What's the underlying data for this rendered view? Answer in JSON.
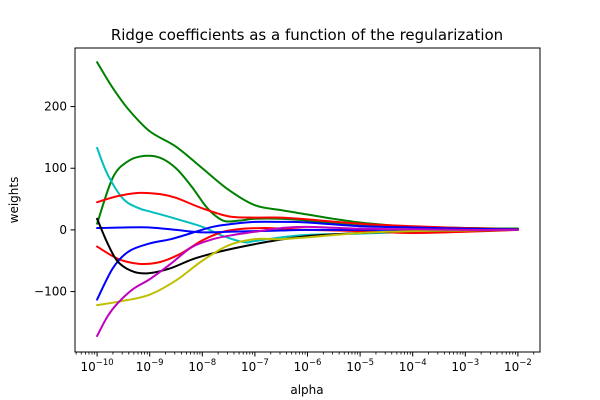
{
  "chart_data": {
    "type": "line",
    "title": "Ridge coefficients as a function of the regularization",
    "xlabel": "alpha",
    "ylabel": "weights",
    "xscale": "log",
    "x_exponent_range": [
      -10,
      -2
    ],
    "xlim_exponent": [
      -10.42,
      -1.58
    ],
    "ylim": [
      -198,
      295
    ],
    "x_ticks": [
      {
        "base": "10",
        "exp": "−10",
        "log10": -10
      },
      {
        "base": "10",
        "exp": "−9",
        "log10": -9
      },
      {
        "base": "10",
        "exp": "−8",
        "log10": -8
      },
      {
        "base": "10",
        "exp": "−7",
        "log10": -7
      },
      {
        "base": "10",
        "exp": "−6",
        "log10": -6
      },
      {
        "base": "10",
        "exp": "−5",
        "log10": -5
      },
      {
        "base": "10",
        "exp": "−4",
        "log10": -4
      },
      {
        "base": "10",
        "exp": "−3",
        "log10": -3
      },
      {
        "base": "10",
        "exp": "−2",
        "log10": -2
      }
    ],
    "y_ticks": [
      {
        "label": "−100",
        "value": -100
      },
      {
        "label": "0",
        "value": 0
      },
      {
        "label": "100",
        "value": 100
      },
      {
        "label": "200",
        "value": 200
      }
    ],
    "series": [
      {
        "name": "green-1",
        "color": "#008000",
        "points": [
          [
            -10,
            272
          ],
          [
            -9.7,
            230
          ],
          [
            -9.4,
            195
          ],
          [
            -9,
            160
          ],
          [
            -8.5,
            135
          ],
          [
            -8,
            100
          ],
          [
            -7.5,
            65
          ],
          [
            -7,
            40
          ],
          [
            -6.5,
            32
          ],
          [
            -6,
            25
          ],
          [
            -5.5,
            18
          ],
          [
            -5,
            12
          ],
          [
            -4.5,
            8
          ],
          [
            -4,
            5
          ],
          [
            -3,
            3
          ],
          [
            -2,
            2
          ]
        ]
      },
      {
        "name": "green-2",
        "color": "#008000",
        "points": [
          [
            -10,
            10
          ],
          [
            -9.7,
            85
          ],
          [
            -9.4,
            112
          ],
          [
            -9.1,
            120
          ],
          [
            -8.8,
            117
          ],
          [
            -8.5,
            100
          ],
          [
            -8.2,
            70
          ],
          [
            -7.9,
            35
          ],
          [
            -7.6,
            15
          ],
          [
            -7.3,
            15
          ],
          [
            -7,
            18
          ],
          [
            -6.5,
            18
          ],
          [
            -6,
            15
          ],
          [
            -5,
            7
          ],
          [
            -4,
            5
          ],
          [
            -3,
            3
          ],
          [
            -2,
            2
          ]
        ]
      },
      {
        "name": "cyan",
        "color": "#00bfbf",
        "points": [
          [
            -10,
            133
          ],
          [
            -9.8,
            90
          ],
          [
            -9.5,
            50
          ],
          [
            -9.2,
            35
          ],
          [
            -9,
            30
          ],
          [
            -8.5,
            18
          ],
          [
            -8,
            5
          ],
          [
            -7.6,
            -10
          ],
          [
            -7.2,
            -20
          ],
          [
            -7,
            -18
          ],
          [
            -6.5,
            -12
          ],
          [
            -6,
            -8
          ],
          [
            -5,
            -6
          ],
          [
            -4,
            -3
          ],
          [
            -3,
            -1
          ],
          [
            -2,
            0
          ]
        ]
      },
      {
        "name": "red-1",
        "color": "#ff0000",
        "points": [
          [
            -10,
            45
          ],
          [
            -9.6,
            55
          ],
          [
            -9.2,
            60
          ],
          [
            -8.8,
            58
          ],
          [
            -8.5,
            52
          ],
          [
            -8,
            35
          ],
          [
            -7.5,
            22
          ],
          [
            -7,
            20
          ],
          [
            -6.5,
            20
          ],
          [
            -6,
            17
          ],
          [
            -5,
            10
          ],
          [
            -4,
            6
          ],
          [
            -3,
            3
          ],
          [
            -2,
            1
          ]
        ]
      },
      {
        "name": "red-2",
        "color": "#ff0000",
        "points": [
          [
            -10,
            -27
          ],
          [
            -9.6,
            -47
          ],
          [
            -9.2,
            -55
          ],
          [
            -8.8,
            -52
          ],
          [
            -8.4,
            -38
          ],
          [
            -8,
            -17
          ],
          [
            -7.6,
            -3
          ],
          [
            -7.2,
            2
          ],
          [
            -6.8,
            3
          ],
          [
            -6.5,
            2
          ],
          [
            -6,
            0
          ],
          [
            -5,
            -2
          ],
          [
            -4,
            -5
          ],
          [
            -3,
            -3
          ],
          [
            -2,
            0
          ]
        ]
      },
      {
        "name": "blue-1",
        "color": "#0000ff",
        "points": [
          [
            -10,
            -113
          ],
          [
            -9.7,
            -62
          ],
          [
            -9.4,
            -35
          ],
          [
            -9,
            -22
          ],
          [
            -8.6,
            -15
          ],
          [
            -8.2,
            -5
          ],
          [
            -7.8,
            5
          ],
          [
            -7.4,
            10
          ],
          [
            -7,
            13
          ],
          [
            -6.5,
            13
          ],
          [
            -6,
            12
          ],
          [
            -5,
            6
          ],
          [
            -4,
            4
          ],
          [
            -3,
            2
          ],
          [
            -2,
            1
          ]
        ]
      },
      {
        "name": "blue-2",
        "color": "#0000ff",
        "points": [
          [
            -10,
            3
          ],
          [
            -9.5,
            4
          ],
          [
            -9,
            4
          ],
          [
            -8.5,
            0
          ],
          [
            -8,
            -4
          ],
          [
            -7.5,
            -3
          ],
          [
            -7,
            -2
          ],
          [
            -6.5,
            -1
          ],
          [
            -6,
            0
          ],
          [
            -5,
            0
          ],
          [
            -4,
            0
          ],
          [
            -3,
            0
          ],
          [
            -2,
            0
          ]
        ]
      },
      {
        "name": "black",
        "color": "#000000",
        "points": [
          [
            -10,
            18
          ],
          [
            -9.8,
            -22
          ],
          [
            -9.6,
            -52
          ],
          [
            -9.3,
            -68
          ],
          [
            -9,
            -70
          ],
          [
            -8.6,
            -62
          ],
          [
            -8.2,
            -48
          ],
          [
            -7.8,
            -38
          ],
          [
            -7.4,
            -30
          ],
          [
            -7,
            -23
          ],
          [
            -6.6,
            -17
          ],
          [
            -6,
            -10
          ],
          [
            -5,
            -5
          ],
          [
            -4,
            -2
          ],
          [
            -3,
            -1
          ],
          [
            -2,
            0
          ]
        ]
      },
      {
        "name": "yellow",
        "color": "#bfbf00",
        "points": [
          [
            -10,
            -122
          ],
          [
            -9.5,
            -115
          ],
          [
            -9,
            -105
          ],
          [
            -8.5,
            -82
          ],
          [
            -8,
            -50
          ],
          [
            -7.5,
            -25
          ],
          [
            -7,
            -15
          ],
          [
            -6.5,
            -15
          ],
          [
            -6,
            -12
          ],
          [
            -5,
            -5
          ],
          [
            -4,
            -2
          ],
          [
            -3,
            -1
          ],
          [
            -2,
            0
          ]
        ]
      },
      {
        "name": "magenta",
        "color": "#bf00bf",
        "points": [
          [
            -10,
            -172
          ],
          [
            -9.8,
            -140
          ],
          [
            -9.6,
            -118
          ],
          [
            -9.3,
            -95
          ],
          [
            -9,
            -80
          ],
          [
            -8.6,
            -55
          ],
          [
            -8.2,
            -28
          ],
          [
            -7.8,
            -15
          ],
          [
            -7.4,
            -8
          ],
          [
            -7,
            -3
          ],
          [
            -6.5,
            3
          ],
          [
            -6,
            5
          ],
          [
            -5,
            2
          ],
          [
            -4,
            1
          ],
          [
            -3,
            0
          ],
          [
            -2,
            0
          ]
        ]
      }
    ]
  }
}
